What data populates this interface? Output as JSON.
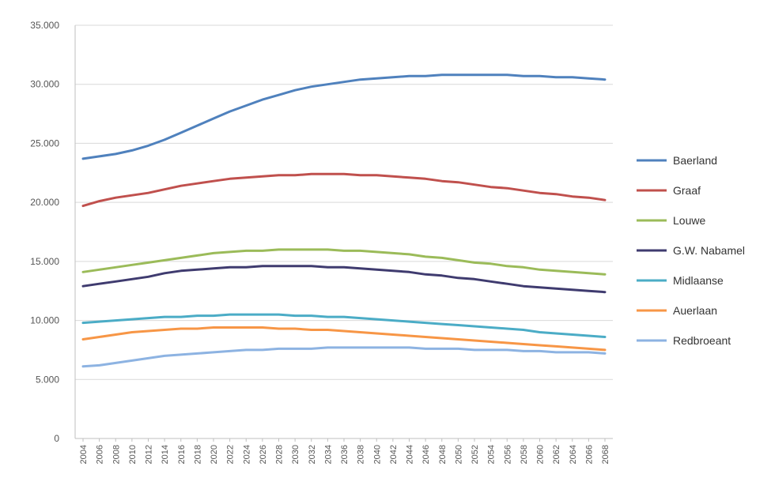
{
  "chart_data": {
    "type": "line",
    "title": "",
    "xlabel": "",
    "ylabel": "",
    "ylim": [
      0,
      35000
    ],
    "yticks": [
      {
        "value": 0,
        "label": "0"
      },
      {
        "value": 5000,
        "label": "5.000"
      },
      {
        "value": 10000,
        "label": "10.000"
      },
      {
        "value": 15000,
        "label": "15.000"
      },
      {
        "value": 20000,
        "label": "20.000"
      },
      {
        "value": 25000,
        "label": "25.000"
      },
      {
        "value": 30000,
        "label": "30.000"
      },
      {
        "value": 35000,
        "label": "35.000"
      }
    ],
    "grid": true,
    "legend_position": "right",
    "x": [
      2004,
      2006,
      2008,
      2010,
      2012,
      2014,
      2016,
      2018,
      2020,
      2022,
      2024,
      2026,
      2028,
      2030,
      2032,
      2034,
      2036,
      2038,
      2040,
      2042,
      2044,
      2046,
      2048,
      2050,
      2052,
      2054,
      2056,
      2058,
      2060,
      2062,
      2064,
      2066,
      2068
    ],
    "x_tick_labels": [
      "2004",
      "2006",
      "2008",
      "2010",
      "2012",
      "2014",
      "2016",
      "2018",
      "2020",
      "2022",
      "2024",
      "2026",
      "2028",
      "2030",
      "2032",
      "2034",
      "2036",
      "2038",
      "2040",
      "2042",
      "2044",
      "2046",
      "2048",
      "2050",
      "2052",
      "2054",
      "2056",
      "2058",
      "2060",
      "2062",
      "2064",
      "2066",
      "2068"
    ],
    "series": [
      {
        "name": "Baerland",
        "color": "#4f81bd",
        "values": [
          23700,
          23900,
          24100,
          24400,
          24800,
          25300,
          25900,
          26500,
          27100,
          27700,
          28200,
          28700,
          29100,
          29500,
          29800,
          30000,
          30200,
          30400,
          30500,
          30600,
          30700,
          30700,
          30800,
          30800,
          30800,
          30800,
          30800,
          30700,
          30700,
          30600,
          30600,
          30500,
          30400
        ]
      },
      {
        "name": "Graaf",
        "color": "#c0504d",
        "values": [
          19700,
          20100,
          20400,
          20600,
          20800,
          21100,
          21400,
          21600,
          21800,
          22000,
          22100,
          22200,
          22300,
          22300,
          22400,
          22400,
          22400,
          22300,
          22300,
          22200,
          22100,
          22000,
          21800,
          21700,
          21500,
          21300,
          21200,
          21000,
          20800,
          20700,
          20500,
          20400,
          20200
        ]
      },
      {
        "name": "Louwe",
        "color": "#9bbb59",
        "values": [
          14100,
          14300,
          14500,
          14700,
          14900,
          15100,
          15300,
          15500,
          15700,
          15800,
          15900,
          15900,
          16000,
          16000,
          16000,
          16000,
          15900,
          15900,
          15800,
          15700,
          15600,
          15400,
          15300,
          15100,
          14900,
          14800,
          14600,
          14500,
          14300,
          14200,
          14100,
          14000,
          13900
        ]
      },
      {
        "name": "G.W. Nabamel",
        "color": "#3f3b6f",
        "values": [
          12900,
          13100,
          13300,
          13500,
          13700,
          14000,
          14200,
          14300,
          14400,
          14500,
          14500,
          14600,
          14600,
          14600,
          14600,
          14500,
          14500,
          14400,
          14300,
          14200,
          14100,
          13900,
          13800,
          13600,
          13500,
          13300,
          13100,
          12900,
          12800,
          12700,
          12600,
          12500,
          12400
        ]
      },
      {
        "name": "Midlaanse",
        "color": "#4bacc6",
        "values": [
          9800,
          9900,
          10000,
          10100,
          10200,
          10300,
          10300,
          10400,
          10400,
          10500,
          10500,
          10500,
          10500,
          10400,
          10400,
          10300,
          10300,
          10200,
          10100,
          10000,
          9900,
          9800,
          9700,
          9600,
          9500,
          9400,
          9300,
          9200,
          9000,
          8900,
          8800,
          8700,
          8600
        ]
      },
      {
        "name": "Auerlaan",
        "color": "#f79646",
        "values": [
          8400,
          8600,
          8800,
          9000,
          9100,
          9200,
          9300,
          9300,
          9400,
          9400,
          9400,
          9400,
          9300,
          9300,
          9200,
          9200,
          9100,
          9000,
          8900,
          8800,
          8700,
          8600,
          8500,
          8400,
          8300,
          8200,
          8100,
          8000,
          7900,
          7800,
          7700,
          7600,
          7500
        ]
      },
      {
        "name": "Redbroeant",
        "color": "#8db3e2",
        "values": [
          6100,
          6200,
          6400,
          6600,
          6800,
          7000,
          7100,
          7200,
          7300,
          7400,
          7500,
          7500,
          7600,
          7600,
          7600,
          7700,
          7700,
          7700,
          7700,
          7700,
          7700,
          7600,
          7600,
          7600,
          7500,
          7500,
          7500,
          7400,
          7400,
          7300,
          7300,
          7300,
          7200
        ]
      }
    ]
  }
}
